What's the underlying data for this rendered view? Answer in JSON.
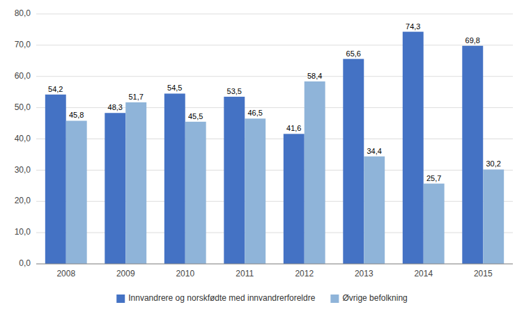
{
  "chart_data": {
    "type": "bar",
    "categories": [
      "2008",
      "2009",
      "2010",
      "2011",
      "2012",
      "2013",
      "2014",
      "2015"
    ],
    "series": [
      {
        "name": "Innvandrere og norskfødte med innvandrerforeldre",
        "color": "#4472C4",
        "values": [
          54.2,
          48.3,
          54.5,
          53.5,
          41.6,
          65.6,
          74.3,
          69.8
        ],
        "value_labels": [
          "54,2",
          "48,3",
          "54,5",
          "53,5",
          "41,6",
          "65,6",
          "74,3",
          "69,8"
        ]
      },
      {
        "name": "Øvrige befolkning",
        "color": "#8FB4D9",
        "values": [
          45.8,
          51.7,
          45.5,
          46.5,
          58.4,
          34.4,
          25.7,
          30.2
        ],
        "value_labels": [
          "45,8",
          "51,7",
          "45,5",
          "46,5",
          "58,4",
          "34,4",
          "25,7",
          "30,2"
        ]
      }
    ],
    "ylim": [
      0,
      80
    ],
    "yticks": [
      {
        "value": 0,
        "label": "0,0"
      },
      {
        "value": 10,
        "label": "10,0"
      },
      {
        "value": 20,
        "label": "20,0"
      },
      {
        "value": 30,
        "label": "30,0"
      },
      {
        "value": 40,
        "label": "40,0"
      },
      {
        "value": 50,
        "label": "50,0"
      },
      {
        "value": 60,
        "label": "60,0"
      },
      {
        "value": 70,
        "label": "70,0"
      },
      {
        "value": 80,
        "label": "80,0"
      }
    ],
    "grid": true,
    "legend": "bottom",
    "data_labels": true
  }
}
